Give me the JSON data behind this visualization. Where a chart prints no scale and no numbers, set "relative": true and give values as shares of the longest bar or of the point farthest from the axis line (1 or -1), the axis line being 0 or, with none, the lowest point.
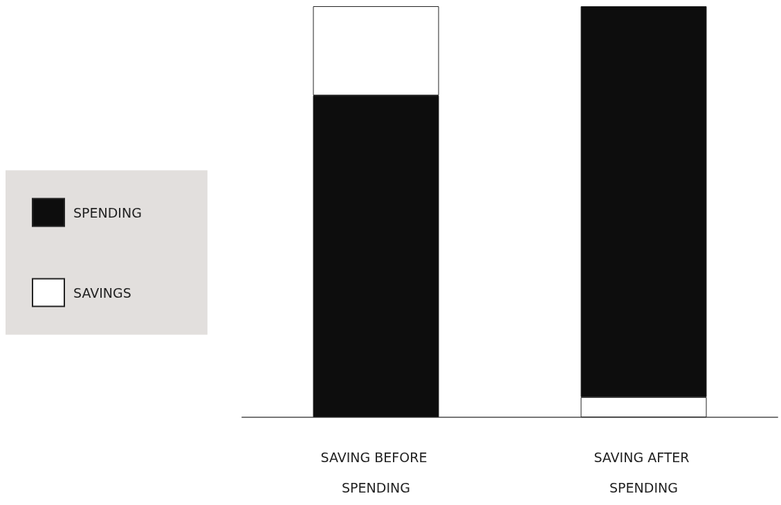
{
  "chart_data": {
    "type": "bar",
    "stacked": true,
    "relative": true,
    "categories": [
      "SAVING BEFORE SPENDING",
      "SAVING AFTER SPENDING"
    ],
    "series": [
      {
        "name": "SPENDING",
        "color": "#0d0d0d",
        "values": [
          0.783,
          null
        ]
      },
      {
        "name": "SAVINGS",
        "color": "#ffffff",
        "values": [
          0.217,
          0.049
        ]
      },
      {
        "color": "#0d0d0d",
        "values": [
          null,
          0.951
        ]
      }
    ],
    "legend": "left"
  }
}
